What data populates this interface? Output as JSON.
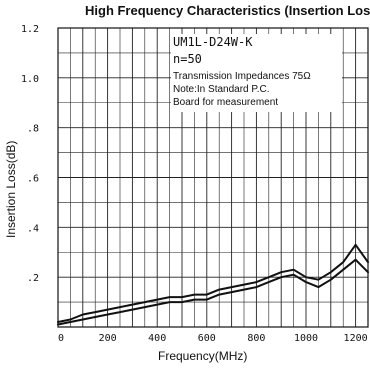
{
  "chart_data": {
    "type": "line",
    "title": "High Frequency Characteristics (Insertion Loss)",
    "xlabel": "Frequency(MHz)",
    "ylabel": "Insertion Loss(dB)",
    "xlim": [
      0,
      1250
    ],
    "ylim": [
      0,
      1.2
    ],
    "x_ticks": [
      0,
      200,
      400,
      600,
      800,
      1000,
      1200
    ],
    "x_tick_labels": [
      "0",
      "200",
      "400",
      "600",
      "800",
      "1000",
      "1200"
    ],
    "y_ticks": [
      0.2,
      0.4,
      0.6,
      0.8,
      1.0,
      1.2
    ],
    "y_tick_labels": [
      ".2",
      ".4",
      ".6",
      ".8",
      "1.0",
      "1.2"
    ],
    "grid": true,
    "annotations": [
      "UM1L-D24W-K",
      "n=50",
      "Transmission Impedances 75Ω",
      "Note:In Standard P.C.",
      "Board for measurement"
    ],
    "series": [
      {
        "x": [
          0,
          50,
          100,
          150,
          200,
          250,
          300,
          350,
          400,
          450,
          500,
          550,
          600,
          650,
          700,
          750,
          800,
          850,
          900,
          950,
          1000,
          1050,
          1100,
          1150,
          1200,
          1250
        ],
        "values": [
          0.02,
          0.03,
          0.05,
          0.06,
          0.07,
          0.08,
          0.09,
          0.1,
          0.11,
          0.12,
          0.12,
          0.13,
          0.13,
          0.15,
          0.16,
          0.17,
          0.18,
          0.2,
          0.22,
          0.23,
          0.2,
          0.19,
          0.22,
          0.26,
          0.33,
          0.26
        ]
      },
      {
        "x": [
          0,
          50,
          100,
          150,
          200,
          250,
          300,
          350,
          400,
          450,
          500,
          550,
          600,
          650,
          700,
          750,
          800,
          850,
          900,
          950,
          1000,
          1050,
          1100,
          1150,
          1200,
          1250
        ],
        "values": [
          0.01,
          0.02,
          0.03,
          0.04,
          0.05,
          0.06,
          0.07,
          0.08,
          0.09,
          0.1,
          0.1,
          0.11,
          0.11,
          0.13,
          0.14,
          0.15,
          0.16,
          0.18,
          0.2,
          0.21,
          0.18,
          0.16,
          0.19,
          0.23,
          0.27,
          0.22
        ]
      }
    ]
  }
}
